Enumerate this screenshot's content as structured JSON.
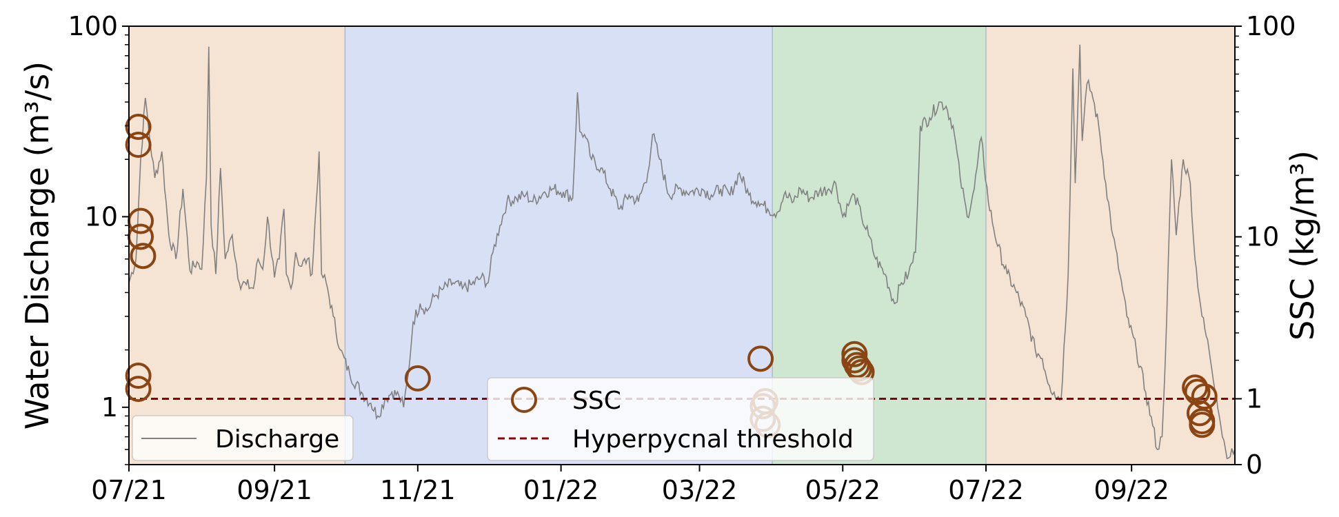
{
  "chart_data": {
    "type": "line",
    "title": "",
    "xlabel": "",
    "ylabel_left": "Water Discharge (m³/s)",
    "ylabel_right": "SSC (kg/m³)",
    "y_left_scale": "log",
    "y_left_lim": [
      0.5,
      100
    ],
    "y_left_ticks": [
      "1",
      "10",
      "100"
    ],
    "y_right_scale": "symlog",
    "y_right_lim": [
      0,
      100
    ],
    "y_right_ticks": [
      "0",
      "1",
      "10",
      "100"
    ],
    "x_lim": [
      "2021-07-01",
      "2022-10-15"
    ],
    "x_ticks": [
      {
        "date": "2021-07-01",
        "label": "07/21"
      },
      {
        "date": "2021-09-01",
        "label": "09/21"
      },
      {
        "date": "2021-11-01",
        "label": "11/21"
      },
      {
        "date": "2022-01-01",
        "label": "01/22"
      },
      {
        "date": "2022-03-01",
        "label": "03/22"
      },
      {
        "date": "2022-05-01",
        "label": "05/22"
      },
      {
        "date": "2022-07-01",
        "label": "07/22"
      },
      {
        "date": "2022-09-01",
        "label": "09/22"
      }
    ],
    "grid": false,
    "shaded_periods": [
      {
        "start": "2021-07-01",
        "end": "2021-10-01",
        "color": "#f5e3d3"
      },
      {
        "start": "2021-10-01",
        "end": "2022-04-01",
        "color": "#d8e0f6"
      },
      {
        "start": "2022-04-01",
        "end": "2022-07-01",
        "color": "#cfe6d0"
      },
      {
        "start": "2022-07-01",
        "end": "2022-10-15",
        "color": "#f5e3d3"
      }
    ],
    "threshold": {
      "name": "Hyperpycnal threshold",
      "ssc": 1,
      "color": "#8b0000"
    },
    "discharge": {
      "name": "Discharge",
      "color": "#808080",
      "points": [
        [
          "2021-07-01",
          4.5
        ],
        [
          "2021-07-04",
          6
        ],
        [
          "2021-07-06",
          20
        ],
        [
          "2021-07-08",
          42
        ],
        [
          "2021-07-10",
          25
        ],
        [
          "2021-07-12",
          16
        ],
        [
          "2021-07-15",
          22
        ],
        [
          "2021-07-18",
          8
        ],
        [
          "2021-07-21",
          6
        ],
        [
          "2021-07-24",
          14
        ],
        [
          "2021-07-27",
          5.2
        ],
        [
          "2021-07-30",
          5.8
        ],
        [
          "2021-08-01",
          5.3
        ],
        [
          "2021-08-03",
          16
        ],
        [
          "2021-08-04",
          78
        ],
        [
          "2021-08-05",
          9
        ],
        [
          "2021-08-07",
          5
        ],
        [
          "2021-08-09",
          18
        ],
        [
          "2021-08-11",
          6
        ],
        [
          "2021-08-14",
          8
        ],
        [
          "2021-08-17",
          4.5
        ],
        [
          "2021-08-20",
          4.4
        ],
        [
          "2021-08-23",
          4.2
        ],
        [
          "2021-08-25",
          6
        ],
        [
          "2021-08-27",
          5.3
        ],
        [
          "2021-08-29",
          10
        ],
        [
          "2021-09-01",
          4.8
        ],
        [
          "2021-09-03",
          6
        ],
        [
          "2021-09-05",
          11
        ],
        [
          "2021-09-06",
          5
        ],
        [
          "2021-09-08",
          4.2
        ],
        [
          "2021-09-10",
          6.5
        ],
        [
          "2021-09-12",
          5.5
        ],
        [
          "2021-09-15",
          6
        ],
        [
          "2021-09-17",
          5
        ],
        [
          "2021-09-20",
          22
        ],
        [
          "2021-09-21",
          5
        ],
        [
          "2021-09-23",
          4.5
        ],
        [
          "2021-09-26",
          3
        ],
        [
          "2021-09-29",
          2
        ],
        [
          "2021-10-03",
          1.5
        ],
        [
          "2021-10-08",
          1.2
        ],
        [
          "2021-10-12",
          1.05
        ],
        [
          "2021-10-15",
          0.9
        ],
        [
          "2021-10-18",
          1.1
        ],
        [
          "2021-10-21",
          1.2
        ],
        [
          "2021-10-24",
          1.15
        ],
        [
          "2021-10-26",
          1.0
        ],
        [
          "2021-10-28",
          1.5
        ],
        [
          "2021-10-30",
          2.8
        ],
        [
          "2021-11-02",
          3.5
        ],
        [
          "2021-11-05",
          3.2
        ],
        [
          "2021-11-08",
          3.8
        ],
        [
          "2021-11-12",
          4.2
        ],
        [
          "2021-11-16",
          4.5
        ],
        [
          "2021-11-20",
          4.2
        ],
        [
          "2021-11-24",
          4.4
        ],
        [
          "2021-11-28",
          4.8
        ],
        [
          "2021-12-01",
          4.5
        ],
        [
          "2021-12-03",
          6.5
        ],
        [
          "2021-12-06",
          9
        ],
        [
          "2021-12-09",
          12
        ],
        [
          "2021-12-13",
          12.5
        ],
        [
          "2021-12-17",
          13
        ],
        [
          "2021-12-20",
          12
        ],
        [
          "2021-12-25",
          13.5
        ],
        [
          "2021-12-29",
          14
        ],
        [
          "2022-01-02",
          13.5
        ],
        [
          "2022-01-06",
          12.5
        ],
        [
          "2022-01-08",
          45
        ],
        [
          "2022-01-09",
          28
        ],
        [
          "2022-01-11",
          27
        ],
        [
          "2022-01-14",
          20
        ],
        [
          "2022-01-18",
          18
        ],
        [
          "2022-01-22",
          14
        ],
        [
          "2022-01-26",
          11
        ],
        [
          "2022-01-30",
          13
        ],
        [
          "2022-02-03",
          12
        ],
        [
          "2022-02-07",
          17
        ],
        [
          "2022-02-09",
          27
        ],
        [
          "2022-02-12",
          20
        ],
        [
          "2022-02-16",
          13
        ],
        [
          "2022-02-20",
          14
        ],
        [
          "2022-02-25",
          13.5
        ],
        [
          "2022-03-02",
          14
        ],
        [
          "2022-03-06",
          13
        ],
        [
          "2022-03-10",
          14
        ],
        [
          "2022-03-14",
          13
        ],
        [
          "2022-03-18",
          17
        ],
        [
          "2022-03-22",
          13
        ],
        [
          "2022-03-26",
          12
        ],
        [
          "2022-03-30",
          11
        ],
        [
          "2022-04-03",
          10.5
        ],
        [
          "2022-04-06",
          13
        ],
        [
          "2022-04-10",
          12
        ],
        [
          "2022-04-13",
          14
        ],
        [
          "2022-04-17",
          12.5
        ],
        [
          "2022-04-21",
          13.5
        ],
        [
          "2022-04-25",
          14
        ],
        [
          "2022-04-28",
          15
        ],
        [
          "2022-05-01",
          10
        ],
        [
          "2022-05-04",
          12
        ],
        [
          "2022-05-06",
          13
        ],
        [
          "2022-05-09",
          10
        ],
        [
          "2022-05-12",
          8
        ],
        [
          "2022-05-15",
          6
        ],
        [
          "2022-05-19",
          5
        ],
        [
          "2022-05-23",
          3.5
        ],
        [
          "2022-05-26",
          4.5
        ],
        [
          "2022-05-29",
          5
        ],
        [
          "2022-06-01",
          6.5
        ],
        [
          "2022-06-03",
          30
        ],
        [
          "2022-06-07",
          33
        ],
        [
          "2022-06-11",
          40
        ],
        [
          "2022-06-14",
          38
        ],
        [
          "2022-06-17",
          30
        ],
        [
          "2022-06-20",
          16
        ],
        [
          "2022-06-23",
          10
        ],
        [
          "2022-06-26",
          14
        ],
        [
          "2022-06-29",
          26
        ],
        [
          "2022-07-02",
          12
        ],
        [
          "2022-07-06",
          7
        ],
        [
          "2022-07-10",
          5
        ],
        [
          "2022-07-14",
          4
        ],
        [
          "2022-07-18",
          3
        ],
        [
          "2022-07-22",
          2
        ],
        [
          "2022-07-25",
          1.8
        ],
        [
          "2022-07-28",
          1.3
        ],
        [
          "2022-07-30",
          1.2
        ],
        [
          "2022-08-02",
          1.1
        ],
        [
          "2022-08-05",
          5
        ],
        [
          "2022-08-07",
          60
        ],
        [
          "2022-08-08",
          15
        ],
        [
          "2022-08-10",
          80
        ],
        [
          "2022-08-11",
          25
        ],
        [
          "2022-08-13",
          50
        ],
        [
          "2022-08-15",
          45
        ],
        [
          "2022-08-18",
          30
        ],
        [
          "2022-08-21",
          15
        ],
        [
          "2022-08-24",
          8
        ],
        [
          "2022-08-27",
          5
        ],
        [
          "2022-08-30",
          3
        ],
        [
          "2022-09-03",
          2
        ],
        [
          "2022-09-07",
          1.2
        ],
        [
          "2022-09-10",
          0.8
        ],
        [
          "2022-09-12",
          0.6
        ],
        [
          "2022-09-14",
          0.7
        ],
        [
          "2022-09-16",
          3
        ],
        [
          "2022-09-18",
          20
        ],
        [
          "2022-09-20",
          8
        ],
        [
          "2022-09-23",
          20
        ],
        [
          "2022-09-26",
          15
        ],
        [
          "2022-09-28",
          6
        ],
        [
          "2022-10-01",
          3
        ],
        [
          "2022-10-04",
          2
        ],
        [
          "2022-10-07",
          1.2
        ],
        [
          "2022-10-09",
          0.8
        ],
        [
          "2022-10-11",
          0.6
        ],
        [
          "2022-10-13",
          0.55
        ],
        [
          "2022-10-15",
          0.6
        ]
      ]
    },
    "ssc": {
      "name": "SSC",
      "color": "#8b4513",
      "points": [
        [
          "2021-07-05",
          34.0
        ],
        [
          "2021-07-05",
          28.0
        ],
        [
          "2021-07-06",
          12.0
        ],
        [
          "2021-07-06",
          10.0
        ],
        [
          "2021-07-07",
          8.0
        ],
        [
          "2021-07-05",
          1.55
        ],
        [
          "2021-07-05",
          1.22
        ],
        [
          "2021-11-01",
          1.48
        ],
        [
          "2022-03-27",
          2.05
        ],
        [
          "2022-03-29",
          0.95
        ],
        [
          "2022-03-28",
          0.85
        ],
        [
          "2022-03-28",
          0.62
        ],
        [
          "2022-03-30",
          0.52
        ],
        [
          "2022-05-06",
          2.2
        ],
        [
          "2022-05-06",
          2.0
        ],
        [
          "2022-05-07",
          1.85
        ],
        [
          "2022-05-08",
          1.75
        ],
        [
          "2022-05-09",
          1.65
        ],
        [
          "2022-09-28",
          1.25
        ],
        [
          "2022-09-29",
          1.15
        ],
        [
          "2022-09-30",
          0.72
        ],
        [
          "2022-10-01",
          0.58
        ],
        [
          "2022-10-01",
          0.52
        ],
        [
          "2022-10-02",
          1.05
        ]
      ]
    },
    "legends": [
      {
        "position": "lower-left",
        "entries": [
          "Discharge"
        ]
      },
      {
        "position": "lower-center",
        "entries": [
          "SSC",
          "Hyperpycnal threshold"
        ]
      }
    ]
  }
}
